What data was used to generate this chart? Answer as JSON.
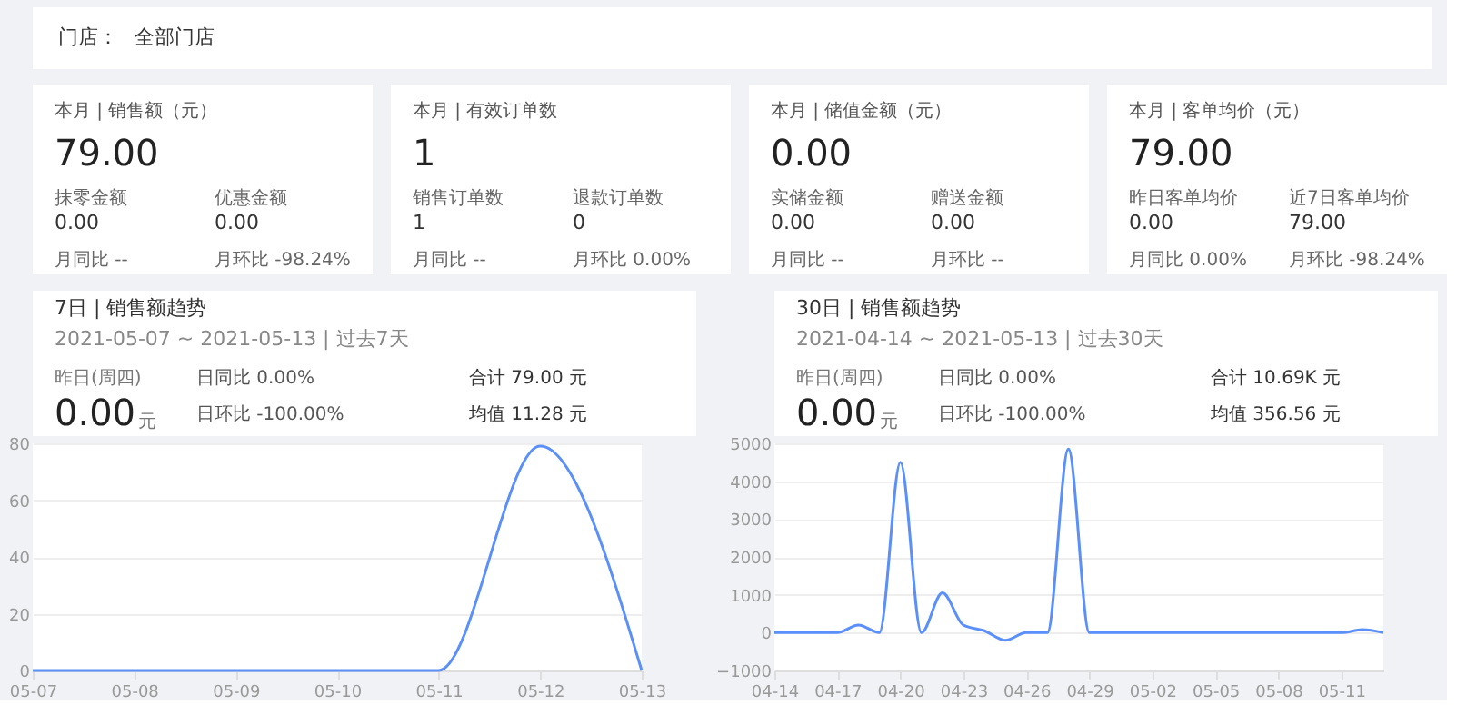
{
  "chart_data": [
    {
      "type": "other",
      "annotations": [
        "门店：",
        "全部门店"
      ]
    },
    {
      "type": "other",
      "title": "本月 | 销售额（元）",
      "annotations": [
        "79.00",
        "抹零金额",
        "0.00",
        "优惠金额",
        "0.00",
        "月同比 --",
        "月环比 -98.24%"
      ]
    },
    {
      "type": "other",
      "title": "本月 | 有效订单数",
      "annotations": [
        "1",
        "销售订单数",
        "1",
        "退款订单数",
        "0",
        "月同比 --",
        "月环比 0.00%"
      ]
    },
    {
      "type": "other",
      "title": "本月 | 储值金额（元）",
      "annotations": [
        "0.00",
        "实储金额",
        "0.00",
        "赠送金额",
        "0.00",
        "月同比 --",
        "月环比 --"
      ]
    },
    {
      "type": "other",
      "title": "本月 | 客单均价（元）",
      "annotations": [
        "79.00",
        "昨日客单均价",
        "0.00",
        "近7日客单均价",
        "79.00",
        "月同比 0.00%",
        "月环比 -98.24%"
      ]
    },
    {
      "type": "line",
      "title": "7日 | 销售额趋势",
      "subtitle": "2021-05-07 ~ 2021-05-13 | 过去7天",
      "annotations": [
        "昨日(周四)",
        "0.00",
        "元",
        "日同比 0.00%",
        "日环比 -100.00%",
        "合计 79.00 元",
        "均值 11.28 元"
      ],
      "categories": [
        "05-07",
        "05-08",
        "05-09",
        "05-10",
        "05-11",
        "05-12",
        "05-13"
      ],
      "series": [
        {
          "color": "#5b8ff9",
          "values": [
            0,
            0,
            0,
            0,
            0,
            79,
            0
          ]
        }
      ],
      "ylim": [
        0,
        80
      ],
      "yticks": [
        0,
        20,
        40,
        60,
        80
      ],
      "grid": "y"
    },
    {
      "type": "line",
      "title": "30日 | 销售额趋势",
      "subtitle": "2021-04-14 ~ 2021-05-13 | 过去30天",
      "annotations": [
        "昨日(周四)",
        "0.00",
        "元",
        "日同比 0.00%",
        "日环比 -100.00%",
        "合计 10.69K 元",
        "均值 356.56 元"
      ],
      "categories": [
        "04-14",
        null,
        null,
        "04-17",
        null,
        null,
        "04-20",
        null,
        null,
        "04-23",
        null,
        null,
        "04-26",
        null,
        null,
        "04-29",
        null,
        null,
        "05-02",
        null,
        null,
        "05-05",
        null,
        null,
        "05-08",
        null,
        null,
        "05-11",
        null,
        null
      ],
      "series": [
        {
          "color": "#5b8ff9",
          "values": [
            0,
            0,
            0,
            0,
            200,
            0,
            4500,
            0,
            1050,
            200,
            50,
            -200,
            0,
            0,
            4850,
            0,
            0,
            0,
            0,
            0,
            0,
            0,
            0,
            0,
            0,
            0,
            0,
            0,
            80,
            0
          ]
        }
      ],
      "ylim": [
        -1000,
        5000
      ],
      "yticks": [
        -1000,
        0,
        1000,
        2000,
        3000,
        4000,
        5000
      ],
      "grid": "y"
    }
  ]
}
